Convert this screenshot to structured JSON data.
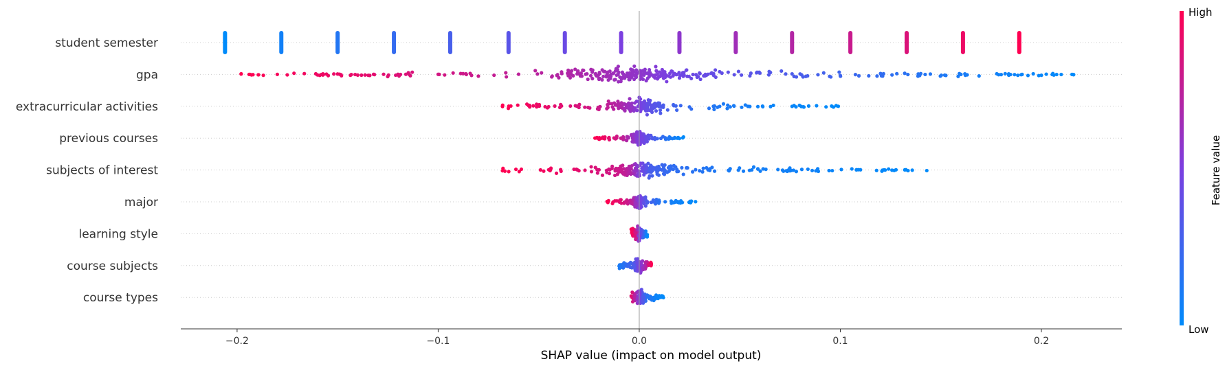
{
  "chart_data": {
    "type": "scatter",
    "subtype": "shap-beeswarm",
    "xlabel": "SHAP value (impact on model output)",
    "xlim": [
      -0.228,
      0.24
    ],
    "xticks": [
      -0.2,
      -0.1,
      0.0,
      0.1,
      0.2
    ],
    "xtick_labels": [
      "−0.2",
      "−0.1",
      "0.0",
      "0.1",
      "0.2"
    ],
    "zero_line": true,
    "row_gridlines": "dotted",
    "colorbar": {
      "label": "Feature value",
      "high_label": "High",
      "low_label": "Low",
      "low_color": "#008bfb",
      "high_color": "#ff0051"
    },
    "features": [
      {
        "name": "student semester",
        "style": "bars",
        "points": [
          [
            -0.206,
            0.0
          ],
          [
            -0.178,
            0.07
          ],
          [
            -0.15,
            0.14
          ],
          [
            -0.122,
            0.21
          ],
          [
            -0.094,
            0.29
          ],
          [
            -0.065,
            0.36
          ],
          [
            -0.037,
            0.43
          ],
          [
            -0.009,
            0.5
          ],
          [
            0.02,
            0.57
          ],
          [
            0.048,
            0.64
          ],
          [
            0.076,
            0.71
          ],
          [
            0.105,
            0.79
          ],
          [
            0.133,
            0.86
          ],
          [
            0.161,
            0.93
          ],
          [
            0.189,
            1.0
          ]
        ]
      },
      {
        "name": "gpa",
        "style": "beeswarm",
        "points": [
          [
            -0.198,
            1.0
          ],
          [
            -0.18,
            0.97
          ],
          [
            -0.16,
            0.94
          ],
          [
            -0.14,
            0.91
          ],
          [
            -0.12,
            0.87
          ],
          [
            -0.1,
            0.83
          ],
          [
            -0.08,
            0.79
          ],
          [
            -0.06,
            0.75
          ],
          [
            -0.04,
            0.71
          ],
          [
            -0.02,
            0.66
          ],
          [
            -0.005,
            0.6
          ],
          [
            0.005,
            0.55
          ],
          [
            0.013,
            0.5
          ],
          [
            0.02,
            0.45
          ],
          [
            0.04,
            0.4
          ],
          [
            0.06,
            0.35
          ],
          [
            0.08,
            0.3
          ],
          [
            0.1,
            0.25
          ],
          [
            0.12,
            0.2
          ],
          [
            0.14,
            0.15
          ],
          [
            0.16,
            0.1
          ],
          [
            0.18,
            0.06
          ],
          [
            0.2,
            0.03
          ],
          [
            0.216,
            0.0
          ]
        ]
      },
      {
        "name": "extracurricular activities",
        "style": "beeswarm",
        "points": [
          [
            -0.068,
            1.0
          ],
          [
            -0.055,
            0.95
          ],
          [
            -0.042,
            0.9
          ],
          [
            -0.03,
            0.85
          ],
          [
            -0.02,
            0.8
          ],
          [
            -0.01,
            0.7
          ],
          [
            -0.004,
            0.6
          ],
          [
            0.0,
            0.5
          ],
          [
            0.004,
            0.4
          ],
          [
            0.012,
            0.3
          ],
          [
            0.025,
            0.2
          ],
          [
            0.04,
            0.12
          ],
          [
            0.055,
            0.08
          ],
          [
            0.059,
            0.05
          ],
          [
            0.077,
            0.03
          ],
          [
            0.099,
            0.0
          ]
        ]
      },
      {
        "name": "previous courses",
        "style": "beeswarm",
        "points": [
          [
            -0.022,
            1.0
          ],
          [
            -0.015,
            0.9
          ],
          [
            -0.008,
            0.75
          ],
          [
            -0.003,
            0.6
          ],
          [
            0.0,
            0.5
          ],
          [
            0.004,
            0.4
          ],
          [
            0.009,
            0.25
          ],
          [
            0.015,
            0.12
          ],
          [
            0.022,
            0.0
          ]
        ]
      },
      {
        "name": "subjects of interest",
        "style": "beeswarm",
        "points": [
          [
            -0.068,
            1.0
          ],
          [
            -0.045,
            0.95
          ],
          [
            -0.03,
            0.9
          ],
          [
            -0.02,
            0.85
          ],
          [
            -0.01,
            0.8
          ],
          [
            -0.004,
            0.7
          ],
          [
            0.0,
            0.5
          ],
          [
            0.005,
            0.3
          ],
          [
            0.015,
            0.2
          ],
          [
            0.03,
            0.15
          ],
          [
            0.045,
            0.1
          ],
          [
            0.059,
            0.08
          ],
          [
            0.086,
            0.06
          ],
          [
            0.096,
            0.04
          ],
          [
            0.143,
            0.0
          ]
        ]
      },
      {
        "name": "major",
        "style": "beeswarm",
        "points": [
          [
            -0.016,
            1.0
          ],
          [
            -0.01,
            0.9
          ],
          [
            -0.004,
            0.75
          ],
          [
            0.0,
            0.5
          ],
          [
            0.004,
            0.3
          ],
          [
            0.01,
            0.15
          ],
          [
            0.016,
            0.08
          ],
          [
            0.028,
            0.0
          ]
        ]
      },
      {
        "name": "learning style",
        "style": "beeswarm",
        "points": [
          [
            -0.004,
            1.0
          ],
          [
            -0.002,
            0.85
          ],
          [
            0.0,
            0.5
          ],
          [
            0.002,
            0.2
          ],
          [
            0.004,
            0.0
          ]
        ]
      },
      {
        "name": "course subjects",
        "style": "beeswarm",
        "points": [
          [
            -0.01,
            0.1
          ],
          [
            -0.003,
            0.3
          ],
          [
            0.0,
            0.5
          ],
          [
            0.003,
            0.7
          ],
          [
            0.006,
            1.0
          ]
        ]
      },
      {
        "name": "course types",
        "style": "beeswarm",
        "points": [
          [
            -0.004,
            0.9
          ],
          [
            0.0,
            0.5
          ],
          [
            0.003,
            0.2
          ],
          [
            0.008,
            0.05
          ],
          [
            0.012,
            0.0
          ]
        ]
      }
    ]
  }
}
